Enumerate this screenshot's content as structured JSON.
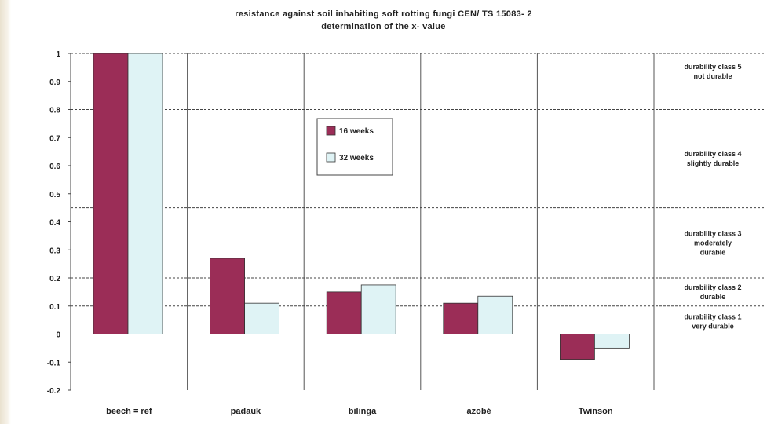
{
  "chart_data": {
    "type": "bar",
    "title": "resistance against soil inhabiting soft rotting fungi CEN/ TS 15083- 2",
    "subtitle": "determination of the x- value",
    "categories": [
      "beech = ref",
      "padauk",
      "bilinga",
      "azobé",
      "Twinson"
    ],
    "series": [
      {
        "name": "16 weeks",
        "color": "#9b2d57",
        "values": [
          1.0,
          0.27,
          0.15,
          0.11,
          -0.09
        ]
      },
      {
        "name": "32 weeks",
        "color": "#dff3f5",
        "values": [
          1.0,
          0.11,
          0.175,
          0.135,
          -0.05
        ]
      }
    ],
    "ylim": [
      -0.2,
      1
    ],
    "yticks": [
      -0.2,
      -0.1,
      0,
      0.1,
      0.2,
      0.3,
      0.4,
      0.5,
      0.6,
      0.7,
      0.8,
      0.9,
      1
    ],
    "ytick_labels": [
      "-0.2",
      "-0.1",
      "0",
      "0.1",
      "0.2",
      "0.3",
      "0.4",
      "0.5",
      "0.6",
      "0.7",
      "0.8",
      "0.9",
      "1"
    ],
    "class_boundaries": [
      0.1,
      0.2,
      0.45,
      0.8,
      1
    ],
    "durability_classes": [
      {
        "lines": [
          "durability class 5",
          "not durable"
        ]
      },
      {
        "lines": [
          "durability class 4",
          "slightly durable"
        ]
      },
      {
        "lines": [
          "durability class 3",
          "moderately",
          "durable"
        ]
      },
      {
        "lines": [
          "durability class 2",
          "durable"
        ]
      },
      {
        "lines": [
          "durability class 1",
          "very durable"
        ]
      }
    ],
    "legend_position": "center-left, inside plot"
  }
}
